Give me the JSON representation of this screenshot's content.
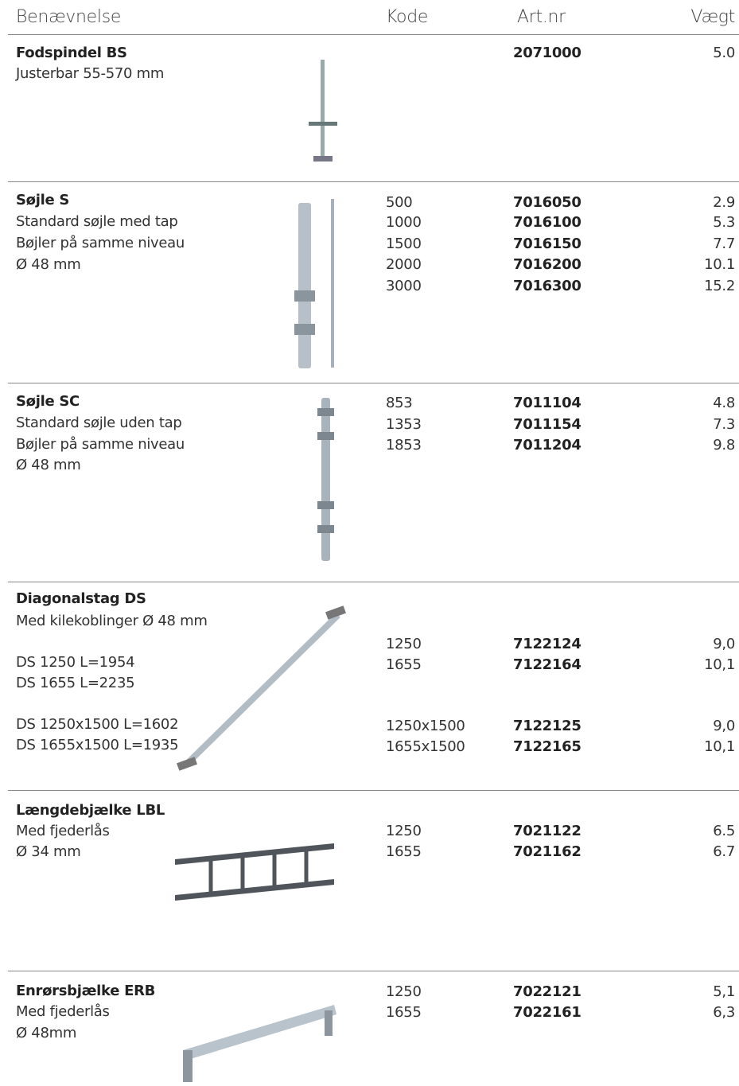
{
  "header": {
    "name": "Benævnelse",
    "code": "Kode",
    "artnr": "Art.nr",
    "weight": "Vægt"
  },
  "products": [
    {
      "title": "Fodspindel BS",
      "lines": [
        "Justerbar 55-570 mm"
      ],
      "rows": [
        {
          "artnr": "2071000",
          "weight": "5.0"
        }
      ]
    },
    {
      "title": "Søjle S",
      "lines": [
        "Standard søjle med tap",
        "Bøjler på samme niveau",
        "Ø 48 mm"
      ],
      "rows": [
        {
          "code": "500",
          "artnr": "7016050",
          "weight": "2.9"
        },
        {
          "code": "1000",
          "artnr": "7016100",
          "weight": "5.3"
        },
        {
          "code": "1500",
          "artnr": "7016150",
          "weight": "7.7"
        },
        {
          "code": "2000",
          "artnr": "7016200",
          "weight": "10.1"
        },
        {
          "code": "3000",
          "artnr": "7016300",
          "weight": "15.2"
        }
      ]
    },
    {
      "title": "Søjle SC",
      "lines": [
        "Standard søjle uden tap",
        "Bøjler på samme niveau",
        "Ø 48 mm"
      ],
      "rows": [
        {
          "code": "853",
          "artnr": "7011104",
          "weight": "4.8"
        },
        {
          "code": "1353",
          "artnr": "7011154",
          "weight": "7.3"
        },
        {
          "code": "1853",
          "artnr": "7011204",
          "weight": "9.8"
        }
      ]
    },
    {
      "title": "Diagonalstag DS",
      "lines": [
        "Med kilekoblinger Ø 48 mm",
        "DS 1250 L=1954",
        "DS 1655 L=2235",
        "DS 1250x1500 L=1602",
        "DS 1655x1500 L=1935"
      ],
      "rows": [
        {
          "code": "1250",
          "artnr": "7122124",
          "weight": "9,0"
        },
        {
          "code": "1655",
          "artnr": "7122164",
          "weight": "10,1"
        },
        {
          "code": "1250x1500",
          "artnr": "7122125",
          "weight": "9,0"
        },
        {
          "code": "1655x1500",
          "artnr": "7122165",
          "weight": "10,1"
        }
      ]
    },
    {
      "title": "Længdebjælke LBL",
      "lines": [
        "Med fjederlås",
        "Ø 34 mm"
      ],
      "rows": [
        {
          "code": "1250",
          "artnr": "7021122",
          "weight": "6.5"
        },
        {
          "code": "1655",
          "artnr": "7021162",
          "weight": "6.7"
        }
      ]
    },
    {
      "title": "Enrørsbjælke ERB",
      "lines": [
        "Med fjederlås",
        "Ø 48mm"
      ],
      "rows": [
        {
          "code": "1250",
          "artnr": "7022121",
          "weight": "5,1"
        },
        {
          "code": "1655",
          "artnr": "7022161",
          "weight": "6,3"
        }
      ]
    }
  ]
}
